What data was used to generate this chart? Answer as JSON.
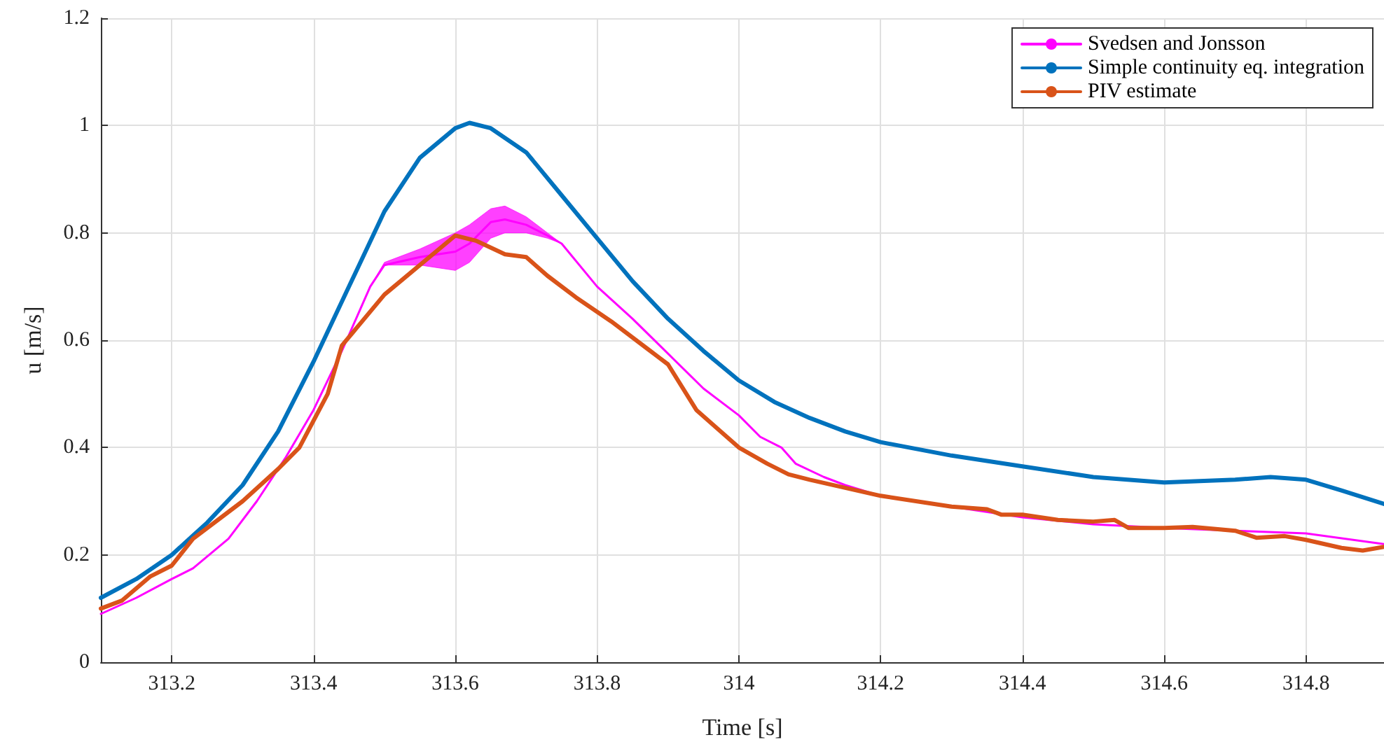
{
  "chart_data": {
    "type": "line",
    "xlabel": "Time [s]",
    "ylabel": "u [m/s]",
    "xlim": [
      313.1,
      314.91
    ],
    "xticks": [
      313.2,
      313.4,
      313.6,
      313.8,
      314,
      314.2,
      314.4,
      314.6,
      314.8
    ],
    "ylim": [
      0,
      1.2
    ],
    "yticks": [
      0,
      0.2,
      0.4,
      0.6,
      0.8,
      1,
      1.2
    ],
    "grid": true,
    "legend": "top right",
    "marker": "none",
    "line_style": "solid",
    "series": [
      {
        "name": "Svedsen and Jonsson",
        "color": "#ff00ff",
        "x": [
          313.1,
          313.15,
          313.2,
          313.23,
          313.28,
          313.32,
          313.36,
          313.4,
          313.44,
          313.48,
          313.5,
          313.55,
          313.6,
          313.62,
          313.65,
          313.67,
          313.7,
          313.73,
          313.75,
          313.8,
          313.85,
          313.9,
          313.95,
          314,
          314.03,
          314.06,
          314.08,
          314.12,
          314.15,
          314.2,
          314.3,
          314.4,
          314.5,
          314.6,
          314.7,
          314.8,
          314.91
        ],
        "values": [
          0.09,
          0.12,
          0.155,
          0.175,
          0.23,
          0.3,
          0.38,
          0.47,
          0.58,
          0.7,
          0.74,
          0.755,
          0.765,
          0.78,
          0.82,
          0.825,
          0.815,
          0.795,
          0.78,
          0.7,
          0.64,
          0.575,
          0.51,
          0.46,
          0.42,
          0.4,
          0.37,
          0.345,
          0.33,
          0.31,
          0.29,
          0.27,
          0.257,
          0.25,
          0.245,
          0.24,
          0.22
        ],
        "lower": [
          0.09,
          0.12,
          0.155,
          0.175,
          0.23,
          0.3,
          0.38,
          0.47,
          0.58,
          0.7,
          0.74,
          0.74,
          0.73,
          0.745,
          0.79,
          0.8,
          0.8,
          0.79,
          0.78,
          0.7,
          0.64,
          0.575,
          0.51,
          0.46,
          0.42,
          0.4,
          0.37,
          0.345,
          0.33,
          0.31,
          0.29,
          0.27,
          0.257,
          0.25,
          0.245,
          0.24,
          0.22
        ],
        "upper": [
          0.09,
          0.12,
          0.155,
          0.175,
          0.23,
          0.3,
          0.38,
          0.47,
          0.58,
          0.7,
          0.745,
          0.77,
          0.8,
          0.815,
          0.845,
          0.85,
          0.83,
          0.8,
          0.78,
          0.7,
          0.64,
          0.575,
          0.51,
          0.46,
          0.42,
          0.4,
          0.37,
          0.345,
          0.33,
          0.31,
          0.29,
          0.27,
          0.257,
          0.25,
          0.245,
          0.24,
          0.22
        ]
      },
      {
        "name": "Simple continuity eq. integration",
        "color": "#0072bd",
        "x": [
          313.1,
          313.15,
          313.2,
          313.25,
          313.3,
          313.35,
          313.4,
          313.45,
          313.5,
          313.55,
          313.6,
          313.62,
          313.65,
          313.7,
          313.75,
          313.8,
          313.85,
          313.9,
          313.95,
          314,
          314.05,
          314.1,
          314.15,
          314.2,
          314.3,
          314.4,
          314.5,
          314.6,
          314.7,
          314.75,
          314.8,
          314.85,
          314.91
        ],
        "values": [
          0.12,
          0.155,
          0.2,
          0.26,
          0.33,
          0.43,
          0.56,
          0.7,
          0.84,
          0.94,
          0.995,
          1.005,
          0.995,
          0.95,
          0.87,
          0.79,
          0.71,
          0.64,
          0.58,
          0.525,
          0.485,
          0.455,
          0.43,
          0.41,
          0.385,
          0.365,
          0.345,
          0.335,
          0.34,
          0.345,
          0.34,
          0.32,
          0.295
        ]
      },
      {
        "name": "PIV estimate",
        "color": "#d95319",
        "x": [
          313.1,
          313.13,
          313.17,
          313.2,
          313.23,
          313.27,
          313.3,
          313.35,
          313.38,
          313.42,
          313.44,
          313.5,
          313.55,
          313.6,
          313.63,
          313.67,
          313.7,
          313.73,
          313.77,
          313.82,
          313.87,
          313.9,
          313.94,
          314,
          314.04,
          314.07,
          314.1,
          314.15,
          314.2,
          314.3,
          314.35,
          314.37,
          314.4,
          314.45,
          314.5,
          314.53,
          314.55,
          314.6,
          314.64,
          314.7,
          314.73,
          314.77,
          314.8,
          314.85,
          314.88,
          314.91
        ],
        "values": [
          0.1,
          0.115,
          0.16,
          0.18,
          0.23,
          0.27,
          0.3,
          0.36,
          0.4,
          0.5,
          0.59,
          0.685,
          0.74,
          0.795,
          0.785,
          0.76,
          0.755,
          0.72,
          0.68,
          0.635,
          0.585,
          0.555,
          0.47,
          0.4,
          0.37,
          0.35,
          0.34,
          0.325,
          0.31,
          0.29,
          0.285,
          0.275,
          0.275,
          0.265,
          0.262,
          0.265,
          0.25,
          0.25,
          0.252,
          0.245,
          0.232,
          0.235,
          0.228,
          0.213,
          0.208,
          0.215
        ]
      }
    ]
  }
}
